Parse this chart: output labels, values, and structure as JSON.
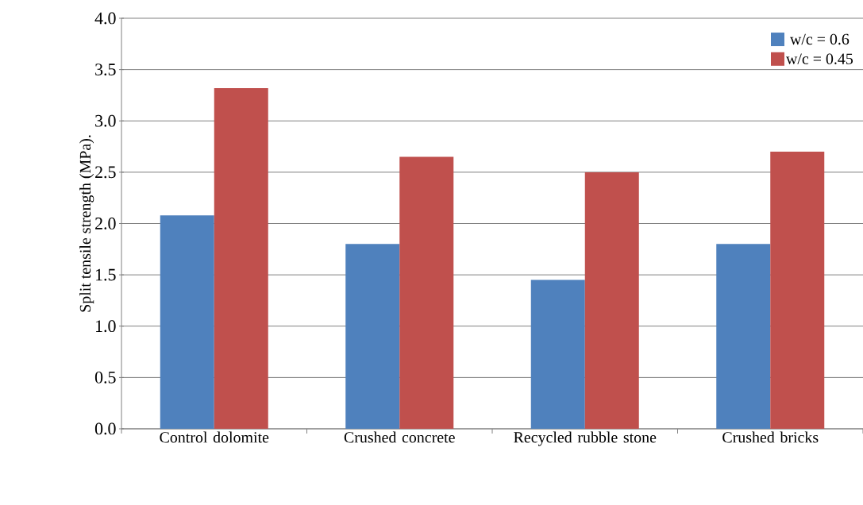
{
  "chart_data": {
    "type": "bar",
    "ylabel": "Split tensile strength (MPa).",
    "categories": [
      "Control dolomite",
      "Crushed concrete",
      "Recycled rubble stone",
      "Crushed bricks"
    ],
    "series": [
      {
        "name": "w/c = 0.6",
        "color": "#4f81bd",
        "values": [
          2.08,
          1.8,
          1.45,
          1.8
        ]
      },
      {
        "name": "w/c = 0.45",
        "color": "#c0504d",
        "values": [
          3.32,
          2.65,
          2.5,
          2.7
        ]
      }
    ],
    "ylim": [
      0,
      4
    ],
    "yticks": [
      {
        "value": 0,
        "label": "0.0"
      },
      {
        "value": 0.5,
        "label": "0.5"
      },
      {
        "value": 1,
        "label": "1.0"
      },
      {
        "value": 1.5,
        "label": "1.5"
      },
      {
        "value": 2,
        "label": "2.0"
      },
      {
        "value": 2.5,
        "label": "2.5"
      },
      {
        "value": 3,
        "label": "3.0"
      },
      {
        "value": 3.5,
        "label": "3.5"
      },
      {
        "value": 4,
        "label": "4.0"
      }
    ],
    "grid": "y",
    "legend": "top right"
  }
}
